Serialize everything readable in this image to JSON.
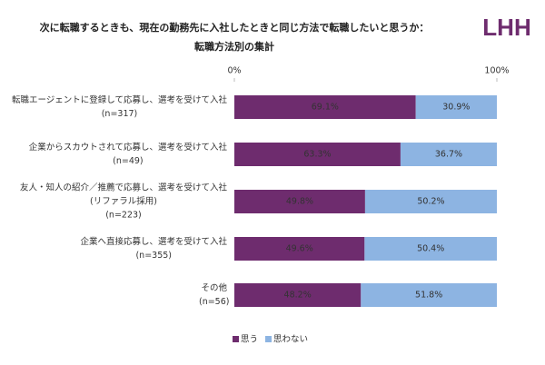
{
  "chart_data": {
    "type": "stacked-bar-horizontal",
    "title": "次に転職するときも、現在の勤務先に入社したときと同じ方法で転職したいと思うか：",
    "subtitle": "転職方法別の集計",
    "logo": "LHH",
    "categories": [
      [
        "転職エージェントに登録して応募し、選考を受けて入社",
        "(n=317)"
      ],
      [
        "企業からスカウトされて応募し、選考を受けて入社",
        "(n=49)"
      ],
      [
        "友人・知人の紹介／推薦で応募し、選考を受けて入社",
        "(リファラル採用)",
        "(n=223)"
      ],
      [
        "企業へ直接応募し、選考を受けて入社",
        "(n=355)"
      ],
      [
        "その他",
        "(n=56)"
      ]
    ],
    "series": [
      {
        "name": "思う",
        "color": "#6e2c6e",
        "values": [
          69.1,
          63.3,
          49.8,
          49.6,
          48.2
        ],
        "value_labels": [
          "69.1%",
          "63.3%",
          "49.8%",
          "49.6%",
          "48.2%"
        ],
        "label_color": "#ffffff"
      },
      {
        "name": "思わない",
        "color": "#8db4e2",
        "values": [
          30.9,
          36.7,
          50.2,
          50.4,
          51.8
        ],
        "value_labels": [
          "30.9%",
          "36.7%",
          "50.2%",
          "50.4%",
          "51.8%"
        ],
        "label_color": "#333333"
      }
    ],
    "xlim": [
      0,
      100
    ],
    "xticks": [
      {
        "value": 0,
        "label": "0%"
      },
      {
        "value": 100,
        "label": "100%"
      }
    ],
    "legend": "bottom"
  }
}
